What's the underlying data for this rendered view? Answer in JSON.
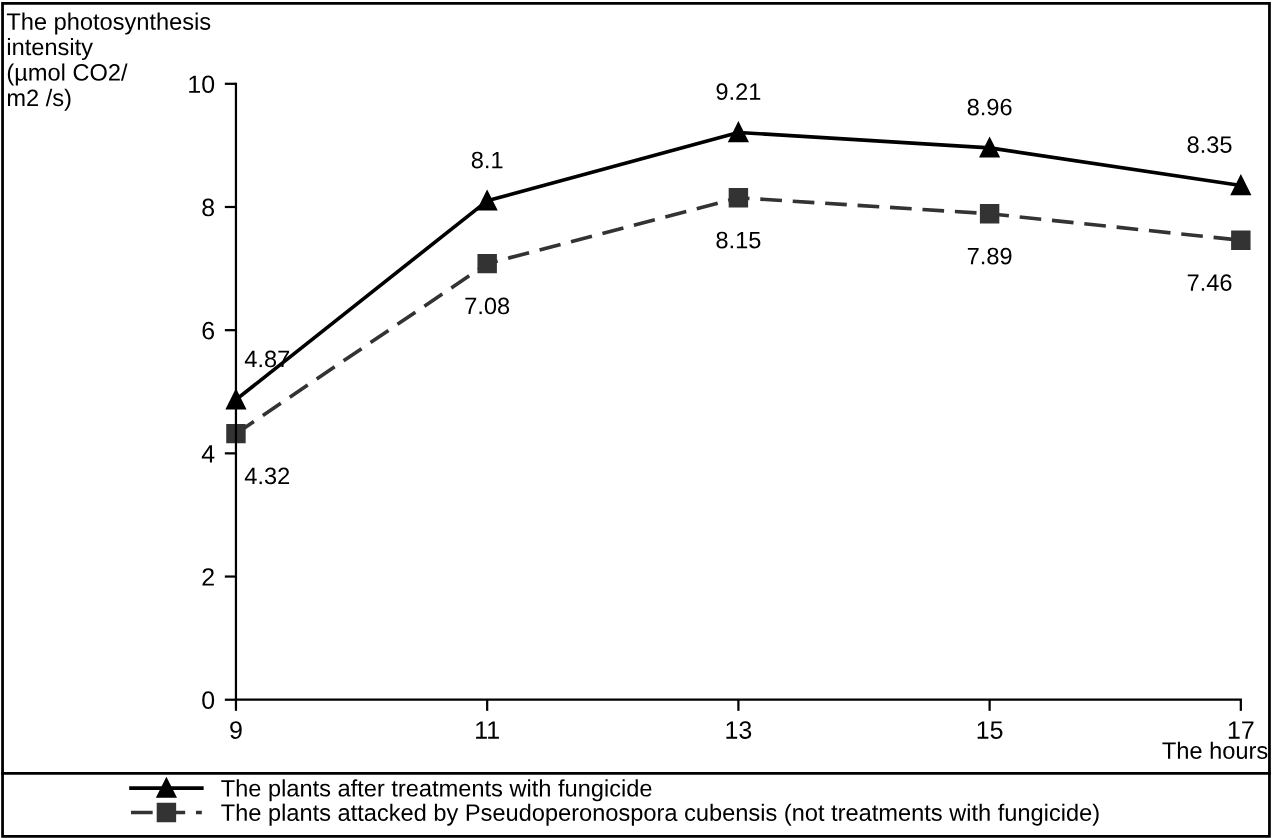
{
  "chart_data": {
    "type": "line",
    "ylabel": "The photosynthesis\nintensity\n(µmol CO2/\nm2 /s)",
    "xlabel": "The hours",
    "x": [
      9,
      11,
      13,
      15,
      17
    ],
    "series": [
      {
        "name": "The plants after treatments with fungicide",
        "color": "#000000",
        "values": [
          4.87,
          8.1,
          9.21,
          8.96,
          8.35
        ],
        "marker": "triangle",
        "line_style": "solid"
      },
      {
        "name": "The plants attacked by Pseudoperonospora cubensis (not treatments with fungicide)",
        "color": "#333333",
        "values": [
          4.32,
          7.08,
          8.15,
          7.89,
          7.46
        ],
        "marker": "square",
        "line_style": "dashed"
      }
    ],
    "xlim": [
      9,
      17
    ],
    "xticks": [
      9,
      11,
      13,
      15,
      17
    ],
    "ylim": [
      0,
      10
    ],
    "yticks": [
      0,
      2,
      4,
      6,
      8,
      10
    ],
    "grid": false,
    "legend": "bottom",
    "data_labels": true
  }
}
